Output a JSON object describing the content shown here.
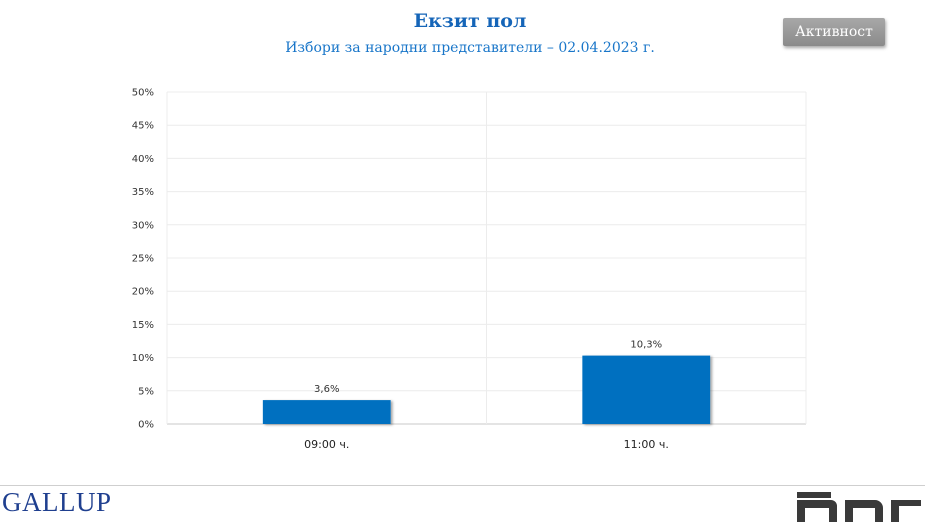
{
  "header": {
    "title": "Екзит пол",
    "subtitle": "Избори за народни представители – 02.04.2023 г.",
    "activity_button": "Активност"
  },
  "footer": {
    "left_logo_text": "GALLUP",
    "right_logo_text": "бнр"
  },
  "colors": {
    "bar": "#0070c0",
    "title": "#1565b8",
    "grid": "#ececec"
  },
  "chart_data": {
    "type": "bar",
    "title": "",
    "xlabel": "",
    "ylabel": "",
    "categories": [
      "09:00 ч.",
      "11:00 ч."
    ],
    "values": [
      3.6,
      10.3
    ],
    "value_labels": [
      "3,6%",
      "10,3%"
    ],
    "y_ticks": [
      "0%",
      "5%",
      "10%",
      "15%",
      "20%",
      "25%",
      "30%",
      "35%",
      "40%",
      "45%",
      "50%"
    ],
    "ylim": [
      0,
      50
    ],
    "grid": true,
    "legend": "none"
  }
}
